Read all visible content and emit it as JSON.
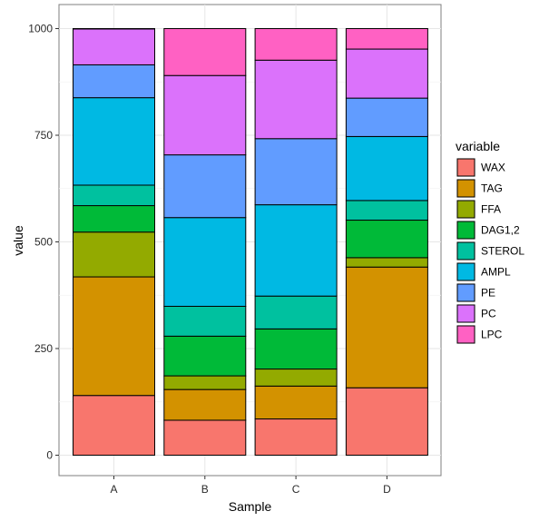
{
  "chart_data": {
    "type": "bar",
    "stacked": true,
    "categories": [
      "A",
      "B",
      "C",
      "D"
    ],
    "xlabel": "Sample",
    "ylabel": "value",
    "ylim": [
      0,
      1000
    ],
    "yticks": [
      0,
      250,
      500,
      750,
      1000
    ],
    "grid": true,
    "legend": {
      "title": "variable",
      "position": "right"
    },
    "series": [
      {
        "name": "WAX",
        "color": "#F8766D",
        "values": [
          140,
          82,
          85,
          158
        ]
      },
      {
        "name": "TAG",
        "color": "#D39200",
        "values": [
          278,
          72,
          77,
          283
        ]
      },
      {
        "name": "FFA",
        "color": "#93AA00",
        "values": [
          105,
          32,
          40,
          22
        ]
      },
      {
        "name": "DAG1,2",
        "color": "#00BA38",
        "values": [
          62,
          93,
          94,
          88
        ]
      },
      {
        "name": "STEROL",
        "color": "#00C19F",
        "values": [
          48,
          70,
          77,
          46
        ]
      },
      {
        "name": "AMPL",
        "color": "#00B9E3",
        "values": [
          205,
          208,
          214,
          150
        ]
      },
      {
        "name": "PE",
        "color": "#619CFF",
        "values": [
          77,
          147,
          155,
          90
        ]
      },
      {
        "name": "PC",
        "color": "#DB72FB",
        "values": [
          84,
          186,
          184,
          115
        ]
      },
      {
        "name": "LPC",
        "color": "#FF61C3",
        "values": [
          1,
          110,
          74,
          48
        ]
      }
    ]
  }
}
